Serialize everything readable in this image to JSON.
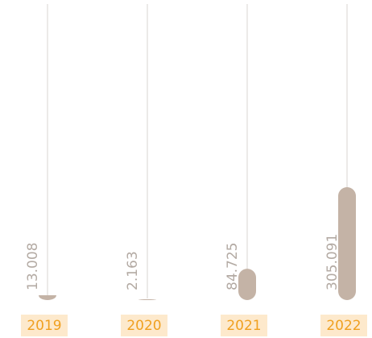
{
  "chart_data": {
    "type": "bar",
    "categories": [
      "2019",
      "2020",
      "2021",
      "2022"
    ],
    "values": [
      13.008,
      2.163,
      84.725,
      305.091
    ],
    "color": "#c4b3a6"
  }
}
